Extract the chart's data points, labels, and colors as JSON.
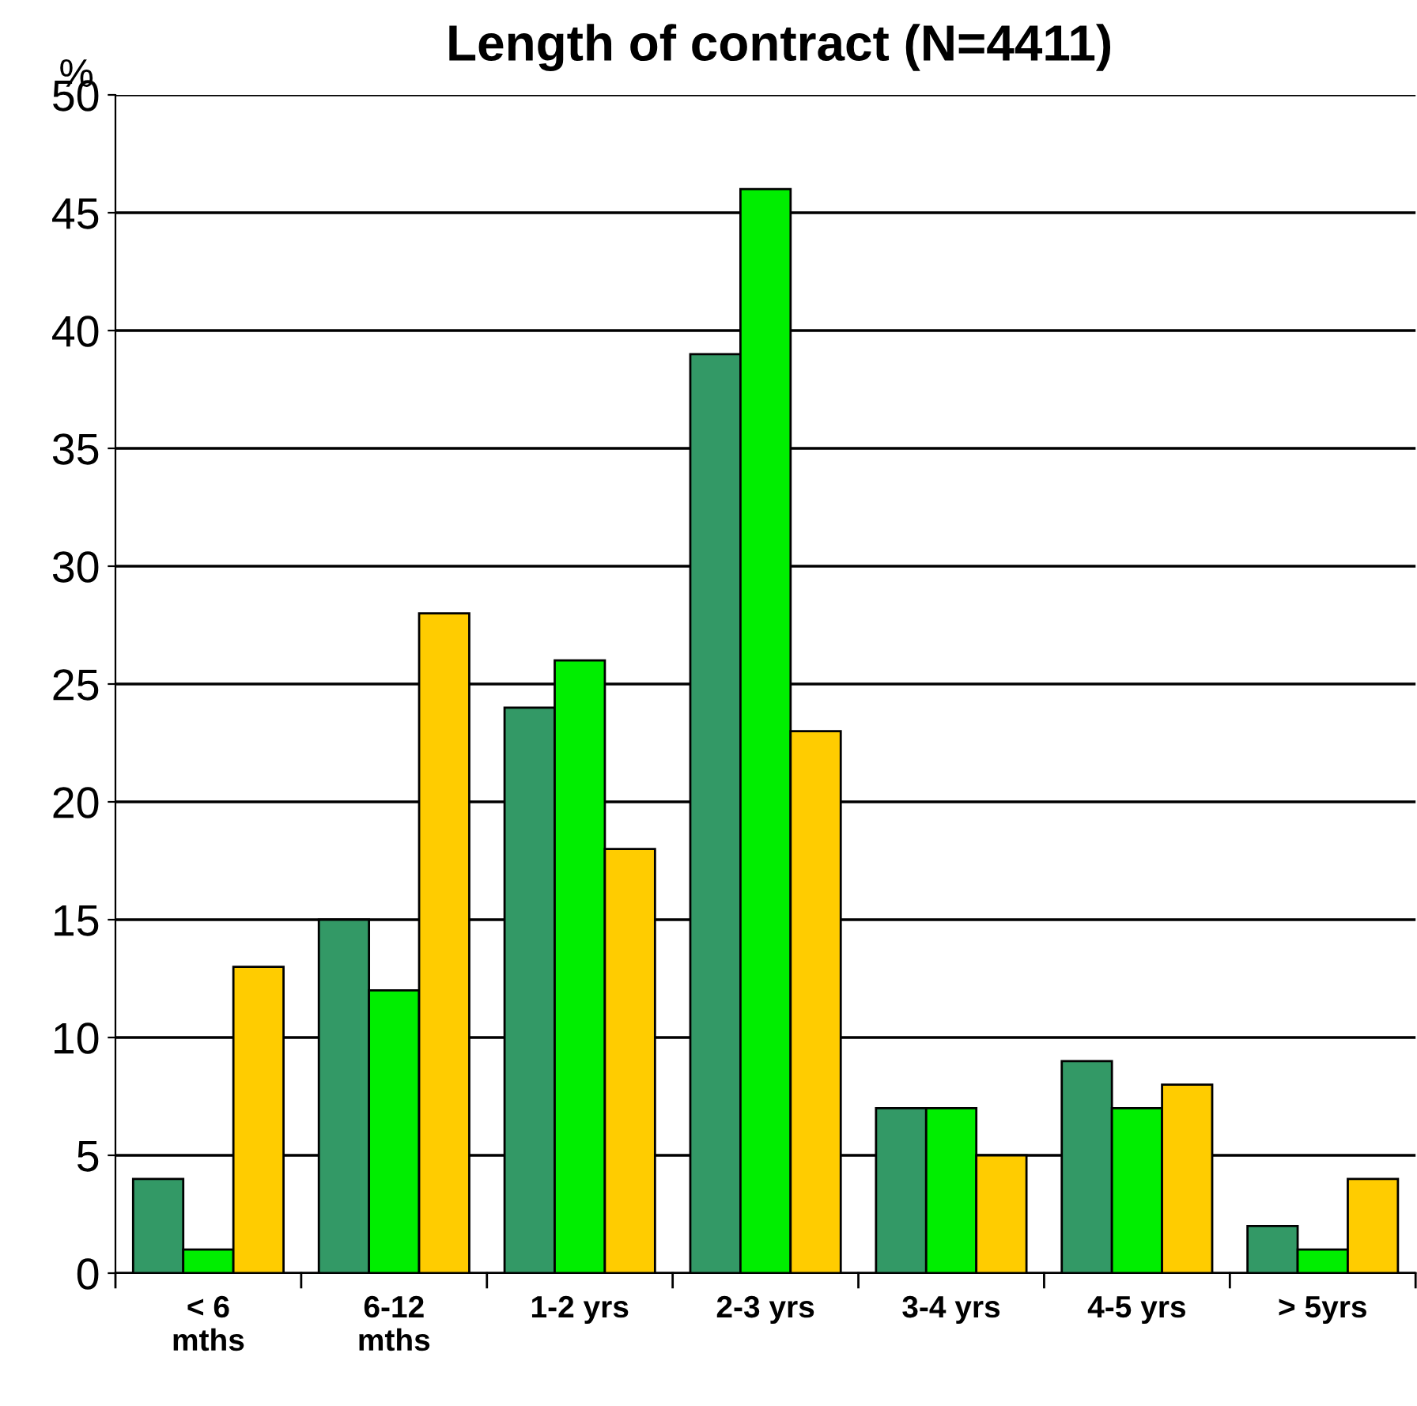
{
  "chart_data": {
    "type": "bar",
    "title": "Length of contract (N=4411)",
    "ylabel": "%",
    "categories": [
      "< 6\nmths",
      "6-12\nmths",
      "1-2 yrs",
      "2-3 yrs",
      "3-4 yrs",
      "4-5 yrs",
      "> 5yrs"
    ],
    "series": [
      {
        "color": "#339966",
        "values": [
          4,
          15,
          24,
          39,
          7,
          9,
          2
        ]
      },
      {
        "color": "#00ee00",
        "values": [
          1,
          12,
          26,
          46,
          7,
          7,
          1
        ]
      },
      {
        "color": "#ffcc00",
        "values": [
          13,
          28,
          18,
          23,
          5,
          8,
          4
        ]
      }
    ],
    "ylim": [
      0,
      50
    ],
    "yticks": [
      0,
      5,
      10,
      15,
      20,
      25,
      30,
      35,
      40,
      45,
      50
    ],
    "grid": "y",
    "legend": false
  }
}
